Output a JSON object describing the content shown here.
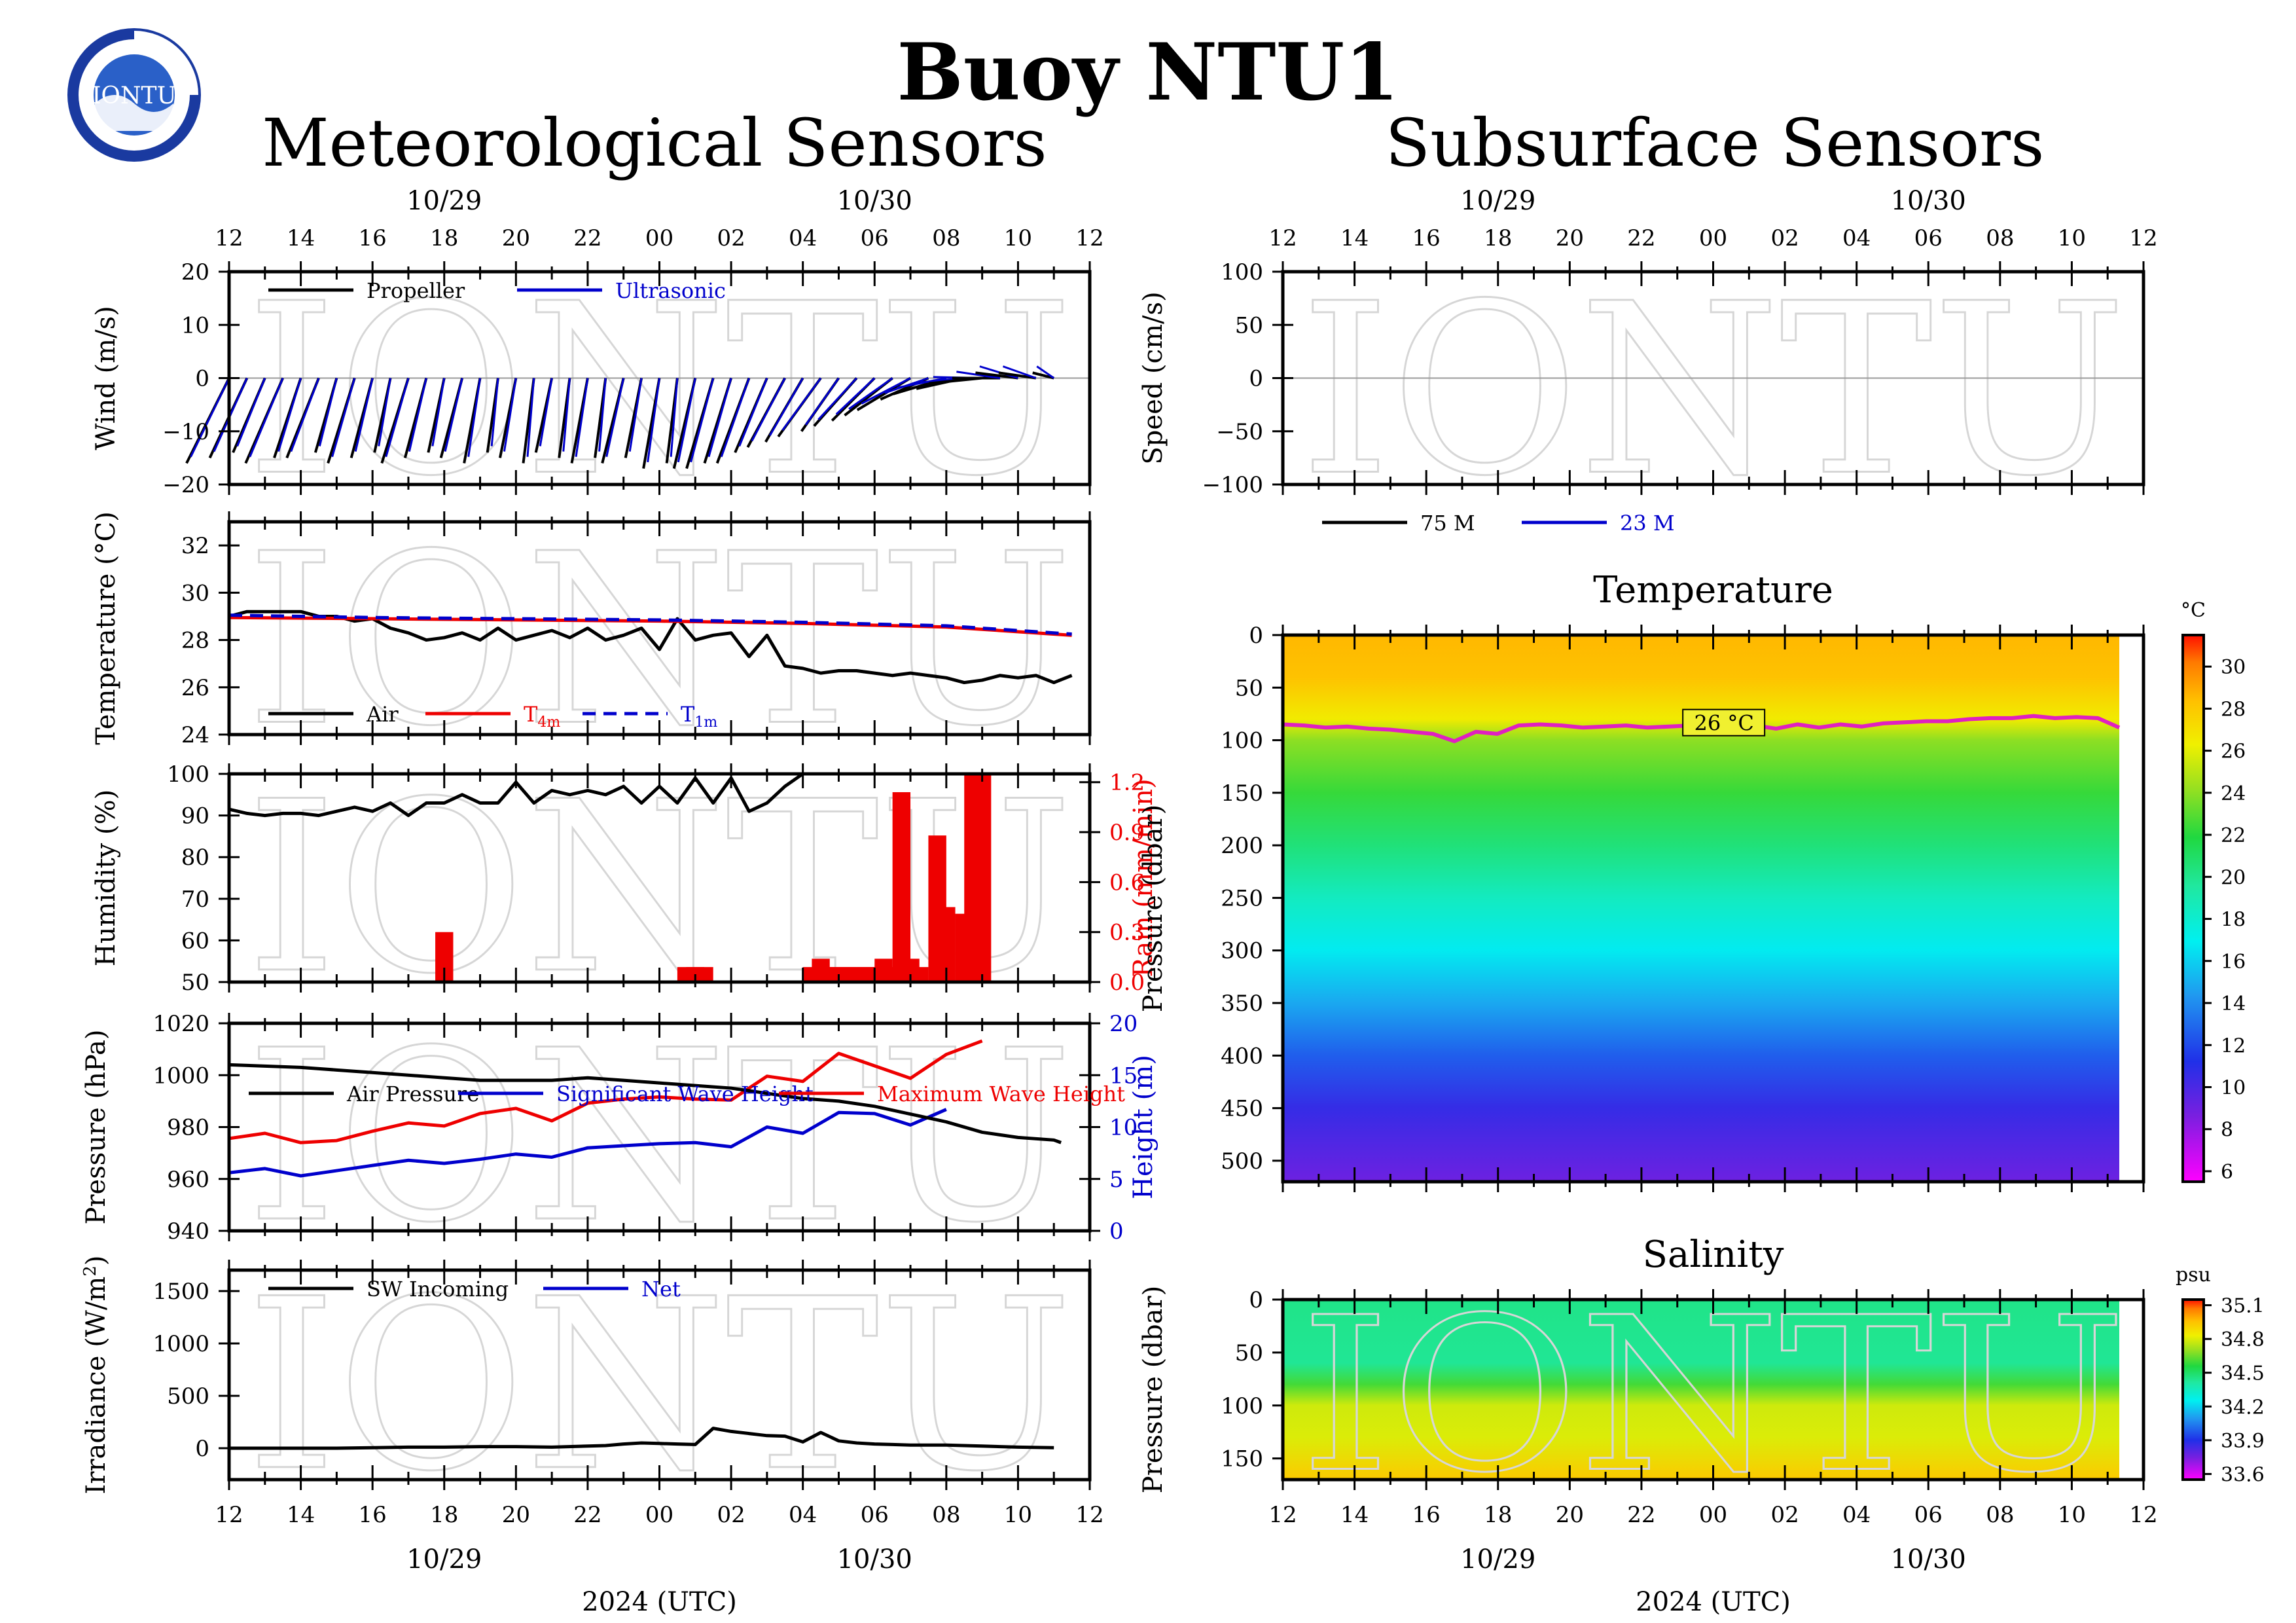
{
  "page": {
    "title": "Buoy NTU1",
    "left_section": "Meteorological Sensors",
    "right_section": "Subsurface Sensors",
    "logo_text": "IONTU",
    "watermark": "IONTU",
    "date_top_1": "10/29",
    "date_top_2": "10/30",
    "date_bottom_1": "10/29",
    "date_bottom_2": "10/30",
    "xaxis_label": "2024 (UTC)",
    "hour_ticks": [
      "12",
      "14",
      "16",
      "18",
      "20",
      "22",
      "00",
      "02",
      "04",
      "06",
      "08",
      "10",
      "12"
    ]
  },
  "colors": {
    "black": "#000000",
    "blue": "#0000cc",
    "red": "#ee0000",
    "magenta": "#e020c0"
  },
  "chart_data": [
    {
      "type": "line",
      "id": "wind",
      "ylabel": "Wind (m/s)",
      "ylim": [
        -20,
        20
      ],
      "yticks": [
        "20",
        "10",
        "0",
        "−10",
        "−20"
      ],
      "legend": [
        "Propeller",
        "Ultrasonic"
      ],
      "hours": [
        0,
        0.5,
        1,
        1.5,
        2,
        2.5,
        3,
        3.5,
        4,
        4.5,
        5,
        5.5,
        6,
        6.5,
        7,
        7.5,
        8,
        8.5,
        9,
        9.5,
        10,
        10.5,
        11,
        11.5,
        12,
        12.5,
        13,
        13.5,
        14,
        14.5,
        15,
        15.5,
        16,
        16.5,
        17,
        17.5,
        18,
        18.5,
        19,
        19.5,
        20,
        20.5,
        21,
        21.5,
        22,
        22.5,
        23
      ],
      "u": [
        -8,
        -7,
        -6,
        -7,
        -5,
        -6,
        -4,
        -5,
        -4,
        -3,
        -5,
        -4,
        -3,
        -4,
        -3,
        -2,
        -3,
        -2,
        -3,
        -2,
        -3,
        -2,
        -4,
        -3,
        -3,
        -2,
        -4,
        -5,
        -5,
        -6,
        -6,
        -7,
        -7,
        -8,
        -7,
        -8,
        -8,
        -9,
        -10,
        -9,
        -10,
        -9,
        -10,
        -9,
        -8,
        -7,
        -4
      ],
      "v": [
        -16,
        -15,
        -14,
        -16,
        -15,
        -15,
        -14,
        -16,
        -15,
        -14,
        -16,
        -15,
        -14,
        -15,
        -16,
        -14,
        -15,
        -16,
        -14,
        -15,
        -16,
        -15,
        -16,
        -15,
        -17,
        -16,
        -17,
        -17,
        -16,
        -16,
        -14,
        -13,
        -12,
        -11,
        -10,
        -9,
        -8,
        -7,
        -6,
        -4,
        -3,
        -2,
        -1,
        0,
        1,
        1,
        1
      ]
    },
    {
      "type": "line",
      "id": "temperature",
      "ylabel": "Temperature (°C)",
      "ylim": [
        24,
        33
      ],
      "yticks": [
        "32",
        "30",
        "28",
        "26",
        "24"
      ],
      "legend": [
        "Air",
        "T",
        "T"
      ],
      "legend_sub": [
        "4m",
        "1m"
      ],
      "series": [
        {
          "name": "Air",
          "x": [
            0,
            0.5,
            1,
            1.5,
            2,
            2.5,
            3,
            3.5,
            4,
            4.5,
            5,
            5.5,
            6,
            6.5,
            7,
            7.5,
            8,
            8.5,
            9,
            9.5,
            10,
            10.5,
            11,
            11.5,
            12,
            12.5,
            13,
            13.5,
            14,
            14.5,
            15,
            15.5,
            16,
            16.5,
            17,
            17.5,
            18,
            18.5,
            19,
            19.5,
            20,
            20.5,
            21,
            21.5,
            22,
            22.5,
            23,
            23.5
          ],
          "values": [
            29.0,
            29.2,
            29.2,
            29.2,
            29.2,
            29.0,
            29.0,
            28.8,
            28.9,
            28.5,
            28.3,
            28.0,
            28.1,
            28.3,
            28.0,
            28.5,
            28.0,
            28.2,
            28.4,
            28.1,
            28.5,
            28.0,
            28.2,
            28.5,
            27.6,
            28.9,
            28.0,
            28.2,
            28.3,
            27.3,
            28.2,
            26.9,
            26.8,
            26.6,
            26.7,
            26.7,
            26.6,
            26.5,
            26.6,
            26.5,
            26.4,
            26.2,
            26.3,
            26.5,
            26.4,
            26.5,
            26.2,
            26.5
          ]
        },
        {
          "name": "T",
          "x": [
            0,
            4,
            8,
            12,
            16,
            20,
            23.5
          ],
          "values": [
            28.95,
            28.9,
            28.85,
            28.8,
            28.7,
            28.55,
            28.2
          ]
        },
        {
          "name": "T",
          "x": [
            0,
            4,
            8,
            12,
            16,
            20,
            23.5
          ],
          "values": [
            29.05,
            28.95,
            28.9,
            28.85,
            28.75,
            28.6,
            28.25
          ]
        }
      ]
    },
    {
      "type": "bar",
      "id": "humidity-rain",
      "ylabel": "Humidity (%)",
      "ylabel2": "Rain (mm/min)",
      "ylim": [
        50,
        100
      ],
      "ylim2": [
        0,
        1.25
      ],
      "yticks": [
        "100",
        "90",
        "80",
        "70",
        "60",
        "50"
      ],
      "yticks2": [
        "1.2",
        "0.9",
        "0.6",
        "0.3",
        "0.0"
      ],
      "humidity": {
        "x": [
          0,
          0.5,
          1,
          1.5,
          2,
          2.5,
          3,
          3.5,
          4,
          4.5,
          5,
          5.5,
          6,
          6.5,
          7,
          7.5,
          8,
          8.5,
          9,
          9.5,
          10,
          10.5,
          11,
          11.5,
          12,
          12.5,
          13,
          13.5,
          14,
          14.5,
          15,
          15.5,
          16
        ],
        "values": [
          91.5,
          90.5,
          90,
          90.5,
          90.5,
          90,
          91,
          92,
          91,
          93,
          90,
          93,
          93,
          95,
          93,
          93,
          98,
          93,
          96,
          95,
          96,
          95,
          97,
          93,
          97,
          93,
          99,
          93,
          99,
          91,
          93,
          97,
          100
        ]
      },
      "rain": {
        "x": [
          6,
          12.75,
          13,
          13.25,
          16.25,
          16.5,
          16.75,
          17,
          17.25,
          17.5,
          17.75,
          18,
          18.25,
          18.5,
          18.75,
          19,
          19.25,
          19.5,
          19.75,
          20,
          20.25,
          20.5,
          20.75,
          21,
          21.25,
          21.5,
          21.75,
          22,
          22.25
        ],
        "values": [
          0.3,
          0.09,
          0.09,
          0.09,
          0.09,
          0.14,
          0.09,
          0.09,
          0.09,
          0.09,
          0.09,
          0.09,
          0.14,
          0.09,
          1.14,
          0.14,
          0.09,
          0.0,
          0.88,
          0.45,
          0.0,
          0.41,
          1.25,
          1.25,
          0,
          0,
          0,
          0,
          0
        ]
      }
    },
    {
      "type": "line",
      "id": "pressure-waves",
      "ylabel": "Pressure (hPa)",
      "ylabel2": "Height (m)",
      "ylim": [
        940,
        1020
      ],
      "ylim2": [
        0,
        20
      ],
      "yticks": [
        "1020",
        "1000",
        "980",
        "960",
        "940"
      ],
      "yticks2": [
        "20",
        "15",
        "10",
        "5",
        "0"
      ],
      "legend": [
        "Air Pressure",
        "Significant Wave Height",
        "Maximum Wave Height"
      ],
      "series": [
        {
          "name": "Air Pressure",
          "x": [
            0,
            1,
            2,
            3,
            4,
            5,
            6,
            7,
            8,
            9,
            10,
            11,
            12,
            13,
            14,
            15,
            16,
            17,
            18,
            19,
            20,
            21,
            22,
            23,
            23.2
          ],
          "values": [
            1004,
            1003.5,
            1003,
            1002,
            1001,
            1000,
            999,
            998,
            998,
            998,
            999,
            998,
            997,
            996,
            995,
            993,
            991,
            990,
            988,
            985,
            982,
            978,
            976,
            975,
            974
          ]
        },
        {
          "name": "Significant Wave Height",
          "x": [
            0,
            1,
            2,
            3,
            4,
            5,
            6,
            7,
            8,
            9,
            10,
            11,
            12,
            13,
            14,
            15,
            16,
            17,
            18,
            19,
            20
          ],
          "values": [
            5.6,
            6,
            5.3,
            5.8,
            6.3,
            6.8,
            6.5,
            6.9,
            7.4,
            7.1,
            8,
            8.2,
            8.4,
            8.5,
            8.1,
            10,
            9.4,
            11.4,
            11.3,
            10.2,
            11.7
          ]
        },
        {
          "name": "Maximum Wave Height",
          "x": [
            0,
            1,
            2,
            3,
            4,
            5,
            6,
            7,
            8,
            9,
            10,
            11,
            12,
            13,
            14,
            15,
            16,
            17,
            18,
            19,
            20,
            21
          ],
          "values": [
            8.9,
            9.4,
            8.5,
            8.7,
            9.6,
            10.4,
            10.1,
            11.3,
            11.8,
            10.6,
            12.3,
            12.7,
            12.9,
            12.7,
            12.6,
            14.9,
            14.4,
            17.1,
            15.9,
            14.7,
            17,
            18.3
          ]
        }
      ]
    },
    {
      "type": "line",
      "id": "irradiance",
      "ylabel": "Irradiance (W/m²)",
      "ylim": [
        -300,
        1700
      ],
      "yticks": [
        "1500",
        "1000",
        "500",
        "0"
      ],
      "legend": [
        "SW Incoming",
        "Net"
      ],
      "series": [
        {
          "name": "SW Incoming",
          "x": [
            0,
            1,
            2,
            3,
            4,
            5,
            6,
            7,
            8,
            9,
            10,
            10.5,
            11,
            11.5,
            12,
            12.5,
            13,
            13.5,
            14,
            14.5,
            15,
            15.5,
            16,
            16.5,
            17,
            17.5,
            18,
            18.5,
            19,
            20,
            21,
            22,
            23
          ],
          "values": [
            0,
            0,
            0,
            0,
            5,
            10,
            10,
            15,
            15,
            10,
            20,
            25,
            40,
            50,
            45,
            40,
            35,
            190,
            160,
            140,
            120,
            115,
            60,
            150,
            70,
            50,
            40,
            35,
            30,
            30,
            20,
            10,
            5
          ]
        }
      ]
    },
    {
      "type": "line",
      "id": "current-speed",
      "ylabel": "Speed (cm/s)",
      "ylim": [
        -100,
        100
      ],
      "yticks": [
        "100",
        "50",
        "0",
        "−50",
        "−100"
      ],
      "legend": [
        "75 M",
        "23 M"
      ],
      "series": [
        {
          "name": "75 M",
          "x": [],
          "values": []
        },
        {
          "name": "23 M",
          "x": [],
          "values": []
        }
      ]
    },
    {
      "type": "heatmap",
      "id": "ocean-temperature",
      "title": "Temperature",
      "ylabel": "Pressure (dbar)",
      "ylim": [
        0,
        520
      ],
      "yticks": [
        "0",
        "50",
        "100",
        "150",
        "200",
        "250",
        "300",
        "350",
        "400",
        "450",
        "500"
      ],
      "colorbar_unit": "°C",
      "colorbar_ticks": [
        "30",
        "28",
        "26",
        "24",
        "22",
        "20",
        "18",
        "16",
        "14",
        "12",
        "10",
        "8",
        "6"
      ],
      "colorbar_range": [
        5.5,
        31.5
      ],
      "isotherm_label": "26 °C",
      "isotherm_depths": [
        85,
        86,
        88,
        87,
        89,
        90,
        92,
        94,
        101,
        92,
        94,
        86,
        85,
        86,
        88,
        87,
        86,
        88,
        87,
        86,
        88,
        87,
        86,
        89,
        85,
        88,
        85,
        87,
        84,
        83,
        82,
        82,
        80,
        79,
        79,
        77,
        79,
        78,
        79,
        88
      ],
      "profile": {
        "pressure": [
          0,
          40,
          80,
          100,
          150,
          200,
          250,
          300,
          350,
          400,
          450,
          520
        ],
        "temp": [
          28.6,
          28.3,
          26.5,
          24.0,
          22.3,
          20.5,
          18.5,
          16.8,
          14.8,
          12.6,
          10.6,
          9.0
        ]
      }
    },
    {
      "type": "heatmap",
      "id": "ocean-salinity",
      "title": "Salinity",
      "ylabel": "Pressure (dbar)",
      "ylim": [
        0,
        170
      ],
      "yticks": [
        "0",
        "50",
        "100",
        "150"
      ],
      "colorbar_unit": "psu",
      "colorbar_ticks": [
        "35.1",
        "34.8",
        "34.5",
        "34.2",
        "33.9",
        "33.6"
      ],
      "colorbar_range": [
        33.55,
        35.15
      ],
      "profile": {
        "pressure": [
          0,
          60,
          80,
          100,
          130,
          170
        ],
        "sal": [
          34.45,
          34.43,
          34.6,
          34.78,
          34.8,
          34.93
        ]
      }
    }
  ]
}
